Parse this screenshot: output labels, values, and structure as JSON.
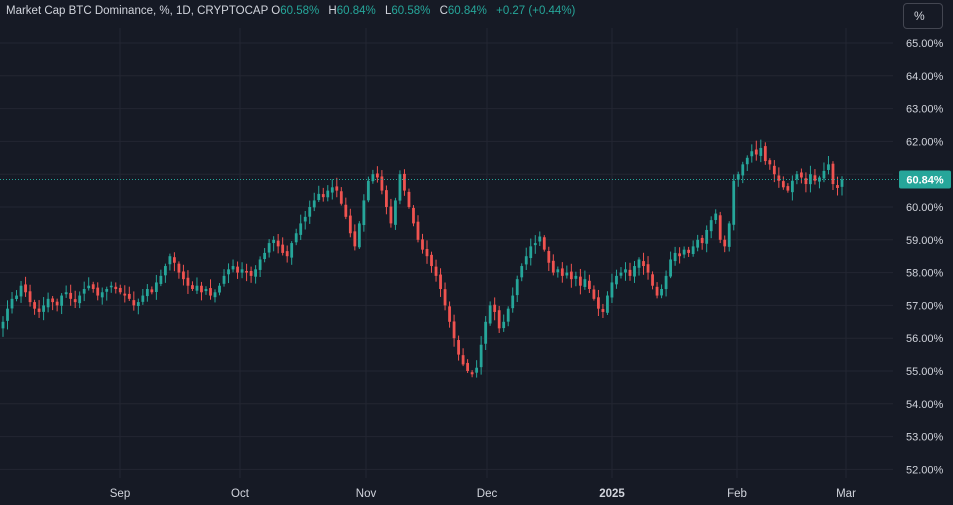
{
  "header": {
    "symbol": "Market Cap BTC Dominance, %, 1D, CRYPTOCAP",
    "open_label": "O",
    "open": "60.58%",
    "high_label": "H",
    "high": "60.84%",
    "low_label": "L",
    "low": "60.58%",
    "close_label": "C",
    "close": "60.84%",
    "change": "+0.27 (+0.44%)"
  },
  "unit_button": "%",
  "last_price_label": "60.84%",
  "colors": {
    "background": "#161a25",
    "up": "#26a69a",
    "down": "#ef5350",
    "grid": "#232632",
    "text": "#d1d4dc"
  },
  "chart_data": {
    "type": "candlestick",
    "title": "Market Cap BTC Dominance, %, 1D, CRYPTOCAP",
    "x_ticks": [
      "Sep",
      "Oct",
      "Nov",
      "Dec",
      "2025",
      "Feb",
      "Mar"
    ],
    "y_ticks": [
      "65.00%",
      "64.00%",
      "63.00%",
      "62.00%",
      "61.00%",
      "60.00%",
      "59.00%",
      "58.00%",
      "57.00%",
      "56.00%",
      "55.00%",
      "54.00%",
      "53.00%",
      "52.00%"
    ],
    "ylim": [
      51.7,
      65.3
    ],
    "last_value": 60.84,
    "grid": true,
    "series": [
      {
        "values": [
          56.5,
          56.9,
          57.2,
          57.3,
          57.6,
          57.4,
          57.1,
          56.9,
          56.8,
          57.0,
          57.2,
          57.1,
          57.0,
          57.3,
          57.4,
          57.2,
          57.1,
          57.3,
          57.5,
          57.6,
          57.5,
          57.3,
          57.4,
          57.5,
          57.6,
          57.5,
          57.4,
          57.3,
          57.2,
          57.0,
          57.1,
          57.3,
          57.5,
          57.4,
          57.7,
          57.9,
          58.2,
          58.5,
          58.3,
          58.0,
          57.8,
          57.6,
          57.5,
          57.6,
          57.4,
          57.5,
          57.3,
          57.4,
          57.6,
          57.9,
          58.1,
          58.2,
          58.0,
          58.1,
          58.0,
          57.9,
          58.1,
          58.4,
          58.6,
          58.9,
          59.0,
          58.8,
          58.6,
          58.5,
          58.9,
          59.2,
          59.5,
          59.7,
          60.0,
          60.2,
          60.4,
          60.3,
          60.5,
          60.6,
          60.5,
          60.1,
          59.7,
          59.2,
          58.8,
          59.5,
          60.2,
          60.8,
          61.0,
          60.9,
          60.5,
          60.0,
          59.5,
          60.2,
          61.0,
          60.5,
          60.0,
          59.5,
          59.0,
          58.7,
          58.5,
          58.2,
          57.9,
          57.5,
          57.0,
          56.5,
          56.0,
          55.5,
          55.2,
          55.0,
          54.9,
          55.1,
          55.8,
          56.5,
          57.0,
          56.8,
          56.3,
          56.5,
          56.9,
          57.3,
          57.8,
          58.2,
          58.5,
          58.8,
          58.9,
          59.1,
          58.7,
          58.3,
          58.0,
          58.1,
          57.9,
          58.0,
          57.8,
          57.9,
          57.6,
          57.8,
          57.5,
          57.2,
          56.9,
          56.8,
          57.3,
          57.7,
          57.9,
          58.0,
          58.1,
          57.9,
          58.2,
          58.4,
          58.2,
          58.0,
          57.6,
          57.3,
          57.5,
          57.9,
          58.4,
          58.6,
          58.5,
          58.7,
          58.6,
          58.8,
          59.0,
          58.9,
          59.3,
          59.6,
          59.8,
          59.0,
          58.8,
          59.5,
          60.8,
          61.0,
          61.3,
          61.5,
          61.7,
          61.6,
          61.8,
          61.4,
          61.3,
          61.0,
          60.8,
          60.6,
          60.5,
          60.8,
          61.0,
          60.9,
          60.7,
          61.0,
          60.8,
          60.9,
          61.1,
          61.3,
          60.7,
          60.58,
          60.84
        ]
      }
    ]
  }
}
